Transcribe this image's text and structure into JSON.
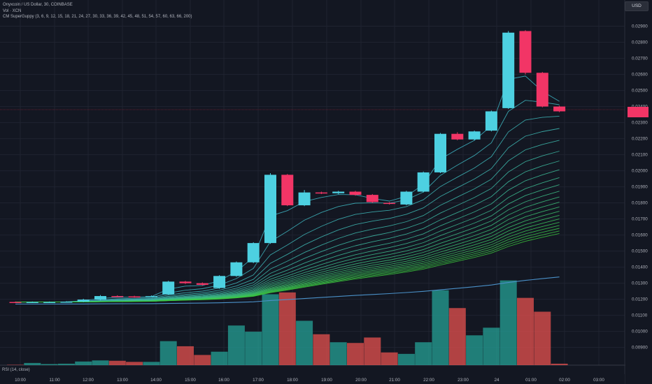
{
  "legend": {
    "title": "Onyxcoin / US Dollar, 30, COINBASE",
    "vol": "Vol · XCN",
    "guppy": "CM SuperGuppy (3, 6, 9, 12, 15, 18, 21, 24, 27, 30, 33, 36, 39, 42, 45, 48, 51, 54, 57, 60, 63, 66, 200)"
  },
  "currency_button": "USD",
  "rsi_label": "RSI (14, close)",
  "last_price_tag": "",
  "colors": {
    "background": "#131722",
    "up": "#4dd0e1",
    "down": "#f23566",
    "volume_up": "#26a69a",
    "volume_down": "#ef5350",
    "grid": "#1f2330",
    "guppy_fast": "#3fb8c9",
    "guppy_slow": "#3cc93c",
    "ma200": "#4a90c8"
  },
  "chart_data": {
    "type": "candlestick",
    "title": "Onyxcoin / US Dollar, 30, COINBASE",
    "ylim": [
      0.00855,
      0.02985
    ],
    "y_ticks": [
      "0.02900",
      "0.02800",
      "0.02700",
      "0.02600",
      "0.02500",
      "0.02400",
      "0.02300",
      "0.02200",
      "0.02100",
      "0.02000",
      "0.01900",
      "0.01800",
      "0.01700",
      "0.01600",
      "0.01500",
      "0.01400",
      "0.01300",
      "0.01200",
      "0.01100",
      "0.01000",
      "0.00900"
    ],
    "x_ticks": [
      "10:00",
      "11:00",
      "12:00",
      "13:00",
      "14:00",
      "15:00",
      "16:00",
      "17:00",
      "18:00",
      "19:00",
      "20:00",
      "21:00",
      "22:00",
      "23:00",
      "24",
      "01:00",
      "02:00",
      "03:00"
    ],
    "candles": [
      {
        "o": 0.01183,
        "c": 0.01181,
        "h": 0.01186,
        "l": 0.01178
      },
      {
        "o": 0.01182,
        "c": 0.01183,
        "h": 0.01186,
        "l": 0.01179
      },
      {
        "o": 0.01183,
        "c": 0.01183,
        "h": 0.01186,
        "l": 0.0118
      },
      {
        "o": 0.01184,
        "c": 0.01185,
        "h": 0.01188,
        "l": 0.01181
      },
      {
        "o": 0.01185,
        "c": 0.01198,
        "h": 0.01203,
        "l": 0.01182
      },
      {
        "o": 0.01198,
        "c": 0.0122,
        "h": 0.01226,
        "l": 0.01194
      },
      {
        "o": 0.0122,
        "c": 0.01218,
        "h": 0.01225,
        "l": 0.01212
      },
      {
        "o": 0.01218,
        "c": 0.01215,
        "h": 0.01222,
        "l": 0.0121
      },
      {
        "o": 0.0122,
        "c": 0.0122,
        "h": 0.01224,
        "l": 0.01216
      },
      {
        "o": 0.0123,
        "c": 0.0131,
        "h": 0.01315,
        "l": 0.01228
      },
      {
        "o": 0.0131,
        "c": 0.013,
        "h": 0.01314,
        "l": 0.01295
      },
      {
        "o": 0.013,
        "c": 0.0129,
        "h": 0.01305,
        "l": 0.01285
      },
      {
        "o": 0.0127,
        "c": 0.01345,
        "h": 0.0135,
        "l": 0.01265
      },
      {
        "o": 0.01345,
        "c": 0.0143,
        "h": 0.01435,
        "l": 0.0134
      },
      {
        "o": 0.0143,
        "c": 0.0155,
        "h": 0.01555,
        "l": 0.01425
      },
      {
        "o": 0.0155,
        "c": 0.01975,
        "h": 0.01985,
        "l": 0.01545
      },
      {
        "o": 0.01975,
        "c": 0.01785,
        "h": 0.0198,
        "l": 0.0178
      },
      {
        "o": 0.01785,
        "c": 0.01865,
        "h": 0.0188,
        "l": 0.0178
      },
      {
        "o": 0.01865,
        "c": 0.0186,
        "h": 0.0187,
        "l": 0.01855
      },
      {
        "o": 0.0186,
        "c": 0.0187,
        "h": 0.01875,
        "l": 0.01855
      },
      {
        "o": 0.0187,
        "c": 0.0185,
        "h": 0.01875,
        "l": 0.01845
      },
      {
        "o": 0.0185,
        "c": 0.01805,
        "h": 0.01855,
        "l": 0.018
      },
      {
        "o": 0.018,
        "c": 0.01795,
        "h": 0.01805,
        "l": 0.0179
      },
      {
        "o": 0.0179,
        "c": 0.0187,
        "h": 0.01875,
        "l": 0.01785
      },
      {
        "o": 0.0187,
        "c": 0.0199,
        "h": 0.01995,
        "l": 0.01865
      },
      {
        "o": 0.0199,
        "c": 0.0223,
        "h": 0.02235,
        "l": 0.01985
      },
      {
        "o": 0.0223,
        "c": 0.02195,
        "h": 0.0224,
        "l": 0.0219
      },
      {
        "o": 0.02195,
        "c": 0.02245,
        "h": 0.0225,
        "l": 0.0219
      },
      {
        "o": 0.0225,
        "c": 0.0237,
        "h": 0.02375,
        "l": 0.02245
      },
      {
        "o": 0.0239,
        "c": 0.0286,
        "h": 0.0287,
        "l": 0.02385
      },
      {
        "o": 0.0287,
        "c": 0.0261,
        "h": 0.02875,
        "l": 0.026
      },
      {
        "o": 0.0261,
        "c": 0.024,
        "h": 0.02615,
        "l": 0.02395
      },
      {
        "o": 0.024,
        "c": 0.0237,
        "h": 0.02405,
        "l": 0.02365
      }
    ],
    "volumes": [
      0.1,
      0.6,
      0.3,
      0.4,
      1.0,
      1.3,
      1.2,
      0.9,
      0.9,
      6.6,
      5.2,
      2.8,
      3.7,
      10.9,
      9.2,
      19.5,
      20.0,
      12.2,
      8.5,
      6.3,
      6.1,
      7.6,
      3.5,
      3.1,
      6.3,
      20.6,
      15.7,
      8.2,
      10.3,
      23.3,
      18.5,
      14.7,
      0.4
    ]
  }
}
